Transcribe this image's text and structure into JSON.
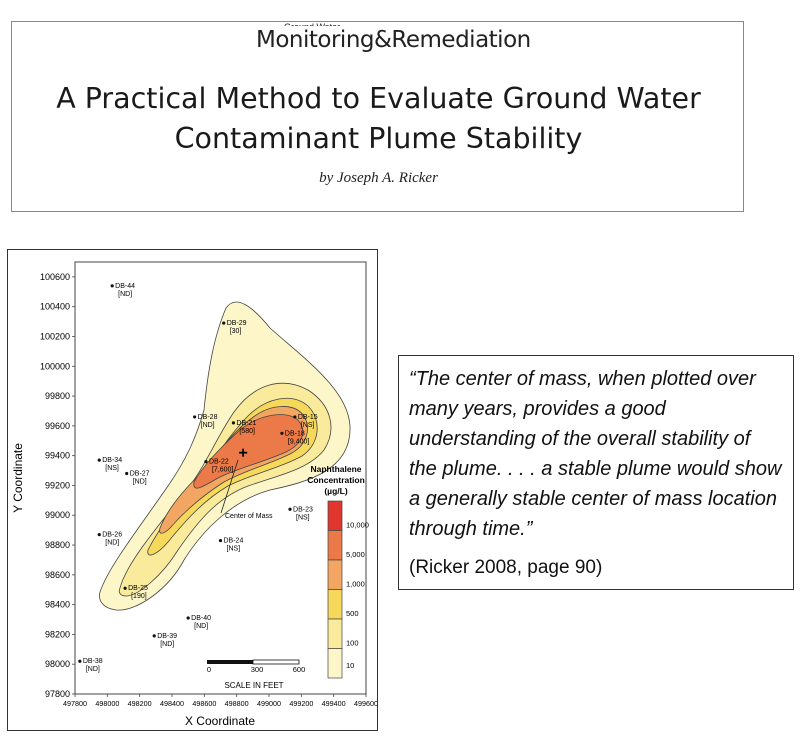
{
  "header": {
    "journal_small": "Ground Water",
    "journal_name": "Monitoring&Remediation",
    "title_line1": "A Practical Method to Evaluate Ground Water",
    "title_line2": "Contaminant Plume Stability",
    "author": "by Joseph A. Ricker"
  },
  "quote": {
    "text": "“The center of mass, when plotted over many years, provides a good understanding of the overall stability of the plume.   . . . a stable plume would show a generally stable center of mass location through time.”",
    "citation": "(Ricker 2008, page 90)"
  },
  "colors": {
    "contour_10": "#fdf6c8",
    "contour_100": "#faeb9c",
    "contour_500": "#f6d85a",
    "contour_1000": "#f3a661",
    "contour_5000": "#ec7a48",
    "contour_10000": "#e0362d"
  },
  "chart_data": {
    "type": "scatter",
    "xlabel": "X Coordinate",
    "ylabel": "Y Coordinate",
    "xlim": [
      497800,
      499600
    ],
    "ylim": [
      97800,
      100700
    ],
    "x_ticks": [
      "497800",
      "498000",
      "498200",
      "498400",
      "498600",
      "498800",
      "499000",
      "499200",
      "499400",
      "499600"
    ],
    "y_ticks": [
      "97800",
      "98000",
      "98200",
      "98400",
      "98600",
      "98800",
      "99000",
      "99200",
      "99400",
      "99600",
      "99800",
      "100000",
      "100200",
      "100400",
      "100600"
    ],
    "wells": [
      {
        "name": "DB-44",
        "value": "[ND]",
        "x": 498030,
        "y": 100540
      },
      {
        "name": "DB-29",
        "value": "[30]",
        "x": 498720,
        "y": 100290
      },
      {
        "name": "DB-28",
        "value": "[ND]",
        "x": 498540,
        "y": 99660
      },
      {
        "name": "DB-21",
        "value": "[580]",
        "x": 498780,
        "y": 99620
      },
      {
        "name": "DB-15",
        "value": "[NS]",
        "x": 499160,
        "y": 99660
      },
      {
        "name": "DB-18",
        "value": "[9,400]",
        "x": 499080,
        "y": 99550
      },
      {
        "name": "DB-34",
        "value": "[NS]",
        "x": 497950,
        "y": 99370
      },
      {
        "name": "DB-27",
        "value": "[ND]",
        "x": 498120,
        "y": 99280
      },
      {
        "name": "DB-22",
        "value": "[7,600]",
        "x": 498610,
        "y": 99360
      },
      {
        "name": "DB-23",
        "value": "[NS]",
        "x": 499130,
        "y": 99040
      },
      {
        "name": "DB-26",
        "value": "[ND]",
        "x": 497950,
        "y": 98870
      },
      {
        "name": "DB-24",
        "value": "[NS]",
        "x": 498700,
        "y": 98830
      },
      {
        "name": "DB-25",
        "value": "[190]",
        "x": 498110,
        "y": 98510
      },
      {
        "name": "DB-40",
        "value": "[ND]",
        "x": 498500,
        "y": 98310
      },
      {
        "name": "DB-39",
        "value": "[ND]",
        "x": 498290,
        "y": 98190
      },
      {
        "name": "DB-38",
        "value": "[ND]",
        "x": 497830,
        "y": 98020
      }
    ],
    "center_of_mass": {
      "label": "Center of Mass",
      "x": 498840,
      "y": 99420
    },
    "legend": {
      "title_line1": "Naphthalene",
      "title_line2": "Concentration",
      "title_line3": "(µg/L)",
      "levels": [
        "10,000",
        "5,000",
        "1,000",
        "500",
        "100",
        "10"
      ]
    },
    "scale_bar": {
      "label": "SCALE IN FEET",
      "ticks": [
        "0",
        "300",
        "600"
      ]
    }
  }
}
